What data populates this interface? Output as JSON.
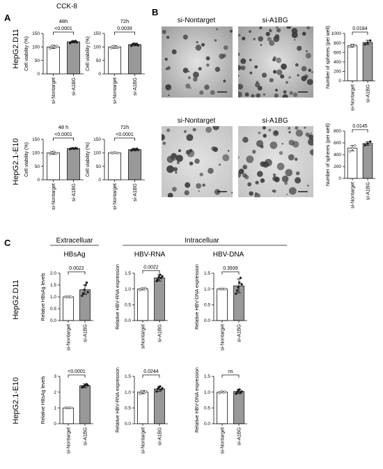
{
  "panels": {
    "A": {
      "letter": "A",
      "title": "CCK-8",
      "row_labels": [
        "HepG2.D11",
        "HepG2.1-E10"
      ]
    },
    "B": {
      "letter": "B",
      "image_labels": [
        "si-Nontarget",
        "si-A1BG",
        "si-Nontarget",
        "si-A1BG"
      ]
    },
    "C": {
      "letter": "C",
      "group_labels": {
        "extracellular": "Extracelluar",
        "intracellular": "Intracelluar"
      },
      "column_titles": [
        "HBsAg",
        "HBV-RNA",
        "HBV-DNA"
      ],
      "row_labels": [
        "HepG2.D11",
        "HepG2.1-E10"
      ]
    }
  },
  "chart_data": [
    {
      "id": "a1",
      "type": "bar",
      "title": "48h",
      "ylabel": "Cell viability (%)",
      "categories": [
        "si-Nontarget",
        "si-A1BG"
      ],
      "values": [
        100,
        119
      ],
      "errors": [
        6,
        4
      ],
      "ylim": [
        0,
        150
      ],
      "yticks": [
        0,
        50,
        100,
        150
      ],
      "pvalue": "<0.0001",
      "points": [
        [
          94,
          100,
          104,
          101,
          97,
          103
        ],
        [
          114,
          118,
          121,
          119,
          122,
          117
        ]
      ]
    },
    {
      "id": "a2",
      "type": "bar",
      "title": "72h",
      "ylabel": "Cell viability (%)",
      "categories": [
        "si-Nontarget",
        "si-A1BG"
      ],
      "values": [
        100,
        109
      ],
      "errors": [
        5,
        5
      ],
      "ylim": [
        0,
        150
      ],
      "yticks": [
        0,
        50,
        100,
        150
      ],
      "pvalue": "0.0039",
      "points": [
        [
          96,
          101,
          103,
          99,
          100,
          97
        ],
        [
          104,
          110,
          112,
          108,
          111,
          106
        ]
      ]
    },
    {
      "id": "a3",
      "type": "bar",
      "title": "48 h",
      "ylabel": "Cell viability (%)",
      "categories": [
        "si-Nontarget",
        "si-A1BG"
      ],
      "values": [
        100,
        116
      ],
      "errors": [
        5,
        2
      ],
      "ylim": [
        0,
        150
      ],
      "yticks": [
        0,
        50,
        100,
        150
      ],
      "pvalue": "<0.0001",
      "points": [
        [
          96,
          102,
          100,
          104,
          97,
          99
        ],
        [
          114,
          116,
          117,
          115,
          118,
          116
        ]
      ]
    },
    {
      "id": "a4",
      "type": "bar",
      "title": "72h",
      "ylabel": "Cell viability (%)",
      "categories": [
        "si-Nontarget",
        "si-A1BG"
      ],
      "values": [
        100,
        112
      ],
      "errors": [
        1,
        4
      ],
      "ylim": [
        0,
        150
      ],
      "yticks": [
        0,
        50,
        100,
        150
      ],
      "pvalue": "<0.0001",
      "points": [
        [
          100,
          99,
          101,
          100,
          100,
          99
        ],
        [
          109,
          113,
          114,
          110,
          115,
          111
        ]
      ]
    },
    {
      "id": "b1",
      "type": "bar",
      "title": "",
      "ylabel": "Number of spheres (per well)",
      "categories": [
        "si-Nontarget",
        "si-A1BG"
      ],
      "values": [
        740,
        810
      ],
      "errors": [
        30,
        45
      ],
      "ylim": [
        0,
        1000
      ],
      "yticks": [
        0,
        200,
        400,
        600,
        800,
        1000
      ],
      "pvalue": "0.0184",
      "points": [
        [
          720,
          745,
          755
        ],
        [
          770,
          805,
          850
        ]
      ]
    },
    {
      "id": "b2",
      "type": "bar",
      "title": "",
      "ylabel": "Number of spheres (per well)",
      "categories": [
        "si-Nontarget",
        "si-A1BG"
      ],
      "values": [
        510,
        590
      ],
      "errors": [
        45,
        30
      ],
      "ylim": [
        0,
        800
      ],
      "yticks": [
        0,
        200,
        400,
        600,
        800
      ],
      "pvalue": "0.0145",
      "points": [
        [
          460,
          510,
          555
        ],
        [
          560,
          590,
          620
        ]
      ]
    },
    {
      "id": "c1",
      "type": "bar",
      "title": "",
      "ylabel": "Relative  HBsAg levels",
      "categories": [
        "si-Nontarget",
        "si-A1BG"
      ],
      "values": [
        1.0,
        1.3
      ],
      "errors": [
        0.01,
        0.2
      ],
      "ylim": [
        0,
        2.0
      ],
      "yticks": [
        0,
        0.5,
        1.0,
        1.5,
        2.0
      ],
      "ytick_labels": [
        "0.0",
        "0.5",
        "1.0",
        "1.5",
        "2.0"
      ],
      "pvalue": "0.0022",
      "points": [
        [
          1.0,
          1.0,
          1.0,
          1.0,
          1.0,
          1.0
        ],
        [
          1.05,
          1.15,
          1.3,
          1.5,
          1.6,
          1.2
        ]
      ]
    },
    {
      "id": "c2",
      "type": "bar",
      "title": "",
      "ylabel": "Relative HBV-RNA expression",
      "categories": [
        "siNontarget",
        "si-A1BG"
      ],
      "values": [
        1.0,
        1.35
      ],
      "errors": [
        0.03,
        0.1
      ],
      "ylim": [
        0,
        1.5
      ],
      "yticks": [
        0,
        0.5,
        1.0,
        1.5
      ],
      "ytick_labels": [
        "0.0",
        "0.5",
        "1.0",
        "1.5"
      ],
      "pvalue": "0.0022",
      "points": [
        [
          0.97,
          1.0,
          1.02,
          1.0,
          0.99,
          1.03
        ],
        [
          1.25,
          1.3,
          1.38,
          1.45,
          1.35,
          1.4
        ]
      ]
    },
    {
      "id": "c3",
      "type": "bar",
      "title": "",
      "ylabel": "Relative HBV-DNA expression",
      "categories": [
        "si-Nontarget",
        "si-A1BG"
      ],
      "values": [
        1.0,
        1.1
      ],
      "errors": [
        0.0,
        0.22
      ],
      "ylim": [
        0,
        1.5
      ],
      "yticks": [
        0,
        0.5,
        1.0,
        1.5
      ],
      "ytick_labels": [
        "0.0",
        "0.5",
        "1.0",
        "1.5"
      ],
      "pvalue": "0.3939",
      "points": [
        [
          1.0,
          1.0,
          1.0,
          1.0,
          1.0,
          1.0
        ],
        [
          0.85,
          0.95,
          1.05,
          1.2,
          1.35,
          1.15
        ]
      ]
    },
    {
      "id": "c4",
      "type": "bar",
      "title": "",
      "ylabel": "Relative HBsAg levels",
      "categories": [
        "si-Nontarget",
        "si-A1BG"
      ],
      "values": [
        1.0,
        2.4
      ],
      "errors": [
        0.01,
        0.12
      ],
      "ylim": [
        0,
        3
      ],
      "yticks": [
        0,
        1,
        2,
        3
      ],
      "ytick_labels": [
        "0",
        "1",
        "2",
        "3"
      ],
      "pvalue": "<0.0001",
      "points": [
        [
          1.0,
          1.0,
          1.0,
          1.0,
          1.0,
          1.0
        ],
        [
          2.3,
          2.35,
          2.4,
          2.45,
          2.5,
          2.42
        ]
      ]
    },
    {
      "id": "c5",
      "type": "bar",
      "title": "",
      "ylabel": "Relative HBV-RNA expression",
      "categories": [
        "si-Nontarget",
        "si-A1BG"
      ],
      "values": [
        1.0,
        1.1
      ],
      "errors": [
        0.05,
        0.08
      ],
      "ylim": [
        0,
        1.5
      ],
      "yticks": [
        0,
        0.5,
        1.0,
        1.5
      ],
      "ytick_labels": [
        "0.0",
        "0.5",
        "1.0",
        "1.5"
      ],
      "pvalue": "0.0244",
      "points": [
        [
          0.95,
          1.0,
          1.03,
          1.0,
          0.98,
          1.02
        ],
        [
          1.02,
          1.1,
          1.15,
          1.18,
          1.08,
          1.12
        ]
      ]
    },
    {
      "id": "c6",
      "type": "bar",
      "title": "",
      "ylabel": "Relative HBV-DNA expression",
      "categories": [
        "si-Nontarget",
        "si-A1BG"
      ],
      "values": [
        1.0,
        1.02
      ],
      "errors": [
        0.02,
        0.07
      ],
      "ylim": [
        0,
        1.5
      ],
      "yticks": [
        0,
        0.5,
        1.0,
        1.5
      ],
      "ytick_labels": [
        "0.0",
        "0.5",
        "1.0",
        "1.5"
      ],
      "pvalue": "ns",
      "points": [
        [
          0.97,
          1.0,
          1.02,
          1.0,
          0.99,
          1.01
        ],
        [
          0.95,
          1.0,
          1.05,
          1.08,
          0.98,
          1.02
        ]
      ]
    }
  ],
  "colors": {
    "control_bar": "#ffffff",
    "knockdown_bar": "#999999",
    "axis": "#111111"
  }
}
